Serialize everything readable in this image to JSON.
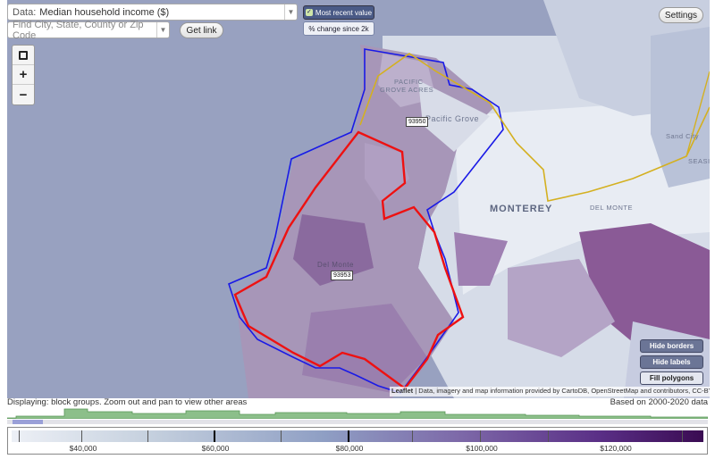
{
  "controls": {
    "data_prefix": "Data:",
    "data_select_value": "Median household income ($)",
    "search_placeholder": "Find City, State, County or Zip Code",
    "get_link_label": "Get link",
    "most_recent_label": "Most recent value",
    "pct_change_label": "% change since 2k",
    "settings_label": "Settings"
  },
  "zoom": {
    "fit_icon": "fullscreen-icon",
    "zoom_in": "+",
    "zoom_out": "−"
  },
  "layer_buttons": {
    "hide_borders": "Hide borders",
    "hide_labels": "Hide labels",
    "fill_polygons": "Fill polygons"
  },
  "map_labels": {
    "pacific_grove_acres_1": "PACIFIC",
    "pacific_grove_acres_2": "GROVE ACRES",
    "pacific_grove": "Pacific Grove",
    "monterey": "MONTEREY",
    "del_monte_east": "DEL MONTE",
    "sand_city": "Sand City",
    "seaside": "SEASI",
    "del_monte_forest": "Del Monte",
    "zip_93950": "93950",
    "zip_93953": "93953"
  },
  "attribution": {
    "leaflet": "Leaflet",
    "text": " | Data, imagery and map information provided by ",
    "carto": "CartoDB",
    "osm": "OpenStreetMap",
    "tail": " and contributors, CC-BY-SA"
  },
  "status": {
    "displaying": "Displaying: block groups. Zoom out and pan to view other areas",
    "based_on": "Based on 2000-2020 data"
  },
  "legend": {
    "labels": [
      "$40,000",
      "$60,000",
      "$80,000",
      "$100,000",
      "$120,000"
    ],
    "colors": {
      "low": "#edf0f6",
      "mid": "#8f9fc4",
      "high": "#3a0b52"
    }
  },
  "colors": {
    "water": "#9aa3c2",
    "boundary_blue": "#1a1ae6",
    "boundary_red": "#ee1111",
    "boundary_yellow": "#d4b020",
    "histogram": "#8cbf8a"
  }
}
